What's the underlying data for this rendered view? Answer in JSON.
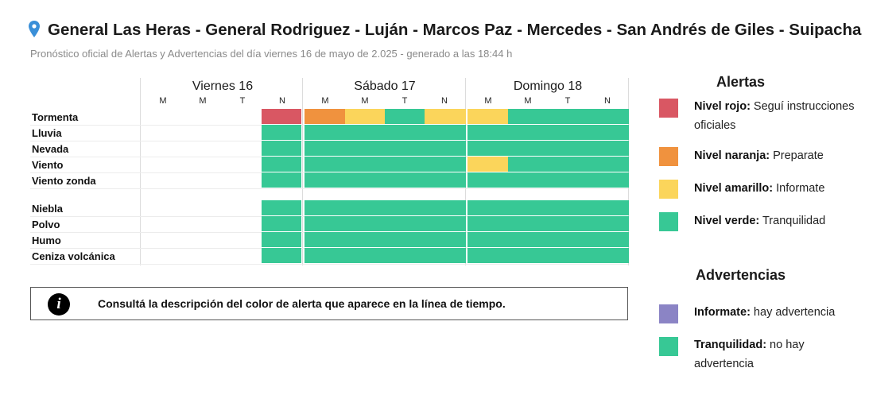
{
  "header": {
    "title": "General Las Heras - General Rodriguez - Luján - Marcos Paz - Mercedes - San Andrés de Giles - Suipacha",
    "subtitle": "Pronóstico oficial de Alertas y Advertencias del día viernes 16 de mayo de 2.025 - generado a las 18:44 h",
    "location_icon": "map-pin-icon"
  },
  "colors": {
    "red": "#d95763",
    "orange": "#f0923e",
    "yellow": "#fbd55b",
    "green": "#37c895",
    "purple": "#8b84c5"
  },
  "timeline": {
    "days": [
      {
        "label": "Viernes 16",
        "periods": [
          "M",
          "M",
          "T",
          "N"
        ]
      },
      {
        "label": "Sábado 17",
        "periods": [
          "M",
          "M",
          "T",
          "N"
        ]
      },
      {
        "label": "Domingo 18",
        "periods": [
          "M",
          "M",
          "T",
          "N"
        ]
      }
    ],
    "alert_rows": [
      {
        "label": "Tormenta",
        "cells": [
          null,
          null,
          null,
          "red",
          "orange",
          "yellow",
          "green",
          "yellow",
          "yellow",
          "green",
          "green",
          "green"
        ]
      },
      {
        "label": "Lluvia",
        "cells": [
          null,
          null,
          null,
          "green",
          "green",
          "green",
          "green",
          "green",
          "green",
          "green",
          "green",
          "green"
        ]
      },
      {
        "label": "Nevada",
        "cells": [
          null,
          null,
          null,
          "green",
          "green",
          "green",
          "green",
          "green",
          "green",
          "green",
          "green",
          "green"
        ]
      },
      {
        "label": "Viento",
        "cells": [
          null,
          null,
          null,
          "green",
          "green",
          "green",
          "green",
          "green",
          "yellow",
          "green",
          "green",
          "green"
        ]
      },
      {
        "label": "Viento zonda",
        "cells": [
          null,
          null,
          null,
          "green",
          "green",
          "green",
          "green",
          "green",
          "green",
          "green",
          "green",
          "green"
        ]
      }
    ],
    "warning_rows": [
      {
        "label": "Niebla",
        "cells": [
          null,
          null,
          null,
          "green",
          "green",
          "green",
          "green",
          "green",
          "green",
          "green",
          "green",
          "green"
        ]
      },
      {
        "label": "Polvo",
        "cells": [
          null,
          null,
          null,
          "green",
          "green",
          "green",
          "green",
          "green",
          "green",
          "green",
          "green",
          "green"
        ]
      },
      {
        "label": "Humo",
        "cells": [
          null,
          null,
          null,
          "green",
          "green",
          "green",
          "green",
          "green",
          "green",
          "green",
          "green",
          "green"
        ]
      },
      {
        "label": "Ceniza volcánica",
        "cells": [
          null,
          null,
          null,
          "green",
          "green",
          "green",
          "green",
          "green",
          "green",
          "green",
          "green",
          "green"
        ]
      }
    ]
  },
  "note": {
    "icon": "info-icon",
    "text": "Consultá la descripción del color de alerta que aparece en la línea de tiempo."
  },
  "legend": {
    "alerts_title": "Alertas",
    "alerts": [
      {
        "level": "Nivel rojo:",
        "desc": "Seguí instrucciones oficiales",
        "color": "red"
      },
      {
        "level": "Nivel naranja:",
        "desc": "Preparate",
        "color": "orange"
      },
      {
        "level": "Nivel amarillo:",
        "desc": "Informate",
        "color": "yellow"
      },
      {
        "level": "Nivel verde:",
        "desc": "Tranquilidad",
        "color": "green"
      }
    ],
    "warnings_title": "Advertencias",
    "warnings": [
      {
        "level": "Informate:",
        "desc": "hay advertencia",
        "color": "purple"
      },
      {
        "level": "Tranquilidad:",
        "desc": "no hay advertencia",
        "color": "green"
      }
    ]
  }
}
